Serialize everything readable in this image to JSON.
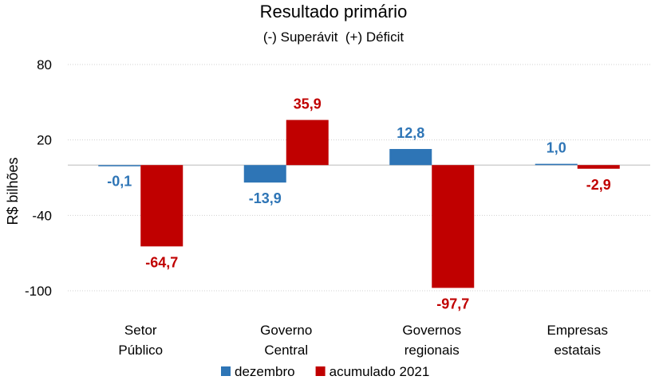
{
  "chart_data": {
    "type": "bar",
    "title": "Resultado primário",
    "subtitle": "(-) Superávit  (+) Déficit",
    "ylabel": "R$ bilhões",
    "xlabel": "",
    "ylim": [
      -100,
      80
    ],
    "yticks": [
      80,
      20,
      -40,
      -100
    ],
    "ytick_labels": [
      "80",
      "20",
      "-40",
      "-100"
    ],
    "grid": true,
    "legend": "bottom",
    "categories": [
      [
        "Setor",
        "Público"
      ],
      [
        "Governo",
        "Central"
      ],
      [
        "Governos",
        "regionais"
      ],
      [
        "Empresas",
        "estatais"
      ]
    ],
    "series": [
      {
        "name": "dezembro",
        "color": "#2E75B6",
        "values": [
          -0.1,
          -13.9,
          12.8,
          1.0
        ],
        "labels": [
          "-0,1",
          "-13,9",
          "12,8",
          "1,0"
        ]
      },
      {
        "name": "acumulado 2021",
        "color": "#C00000",
        "values": [
          -64.7,
          35.9,
          -97.7,
          -2.9
        ],
        "labels": [
          "-64,7",
          "35,9",
          "-97,7",
          "-2,9"
        ]
      }
    ]
  }
}
